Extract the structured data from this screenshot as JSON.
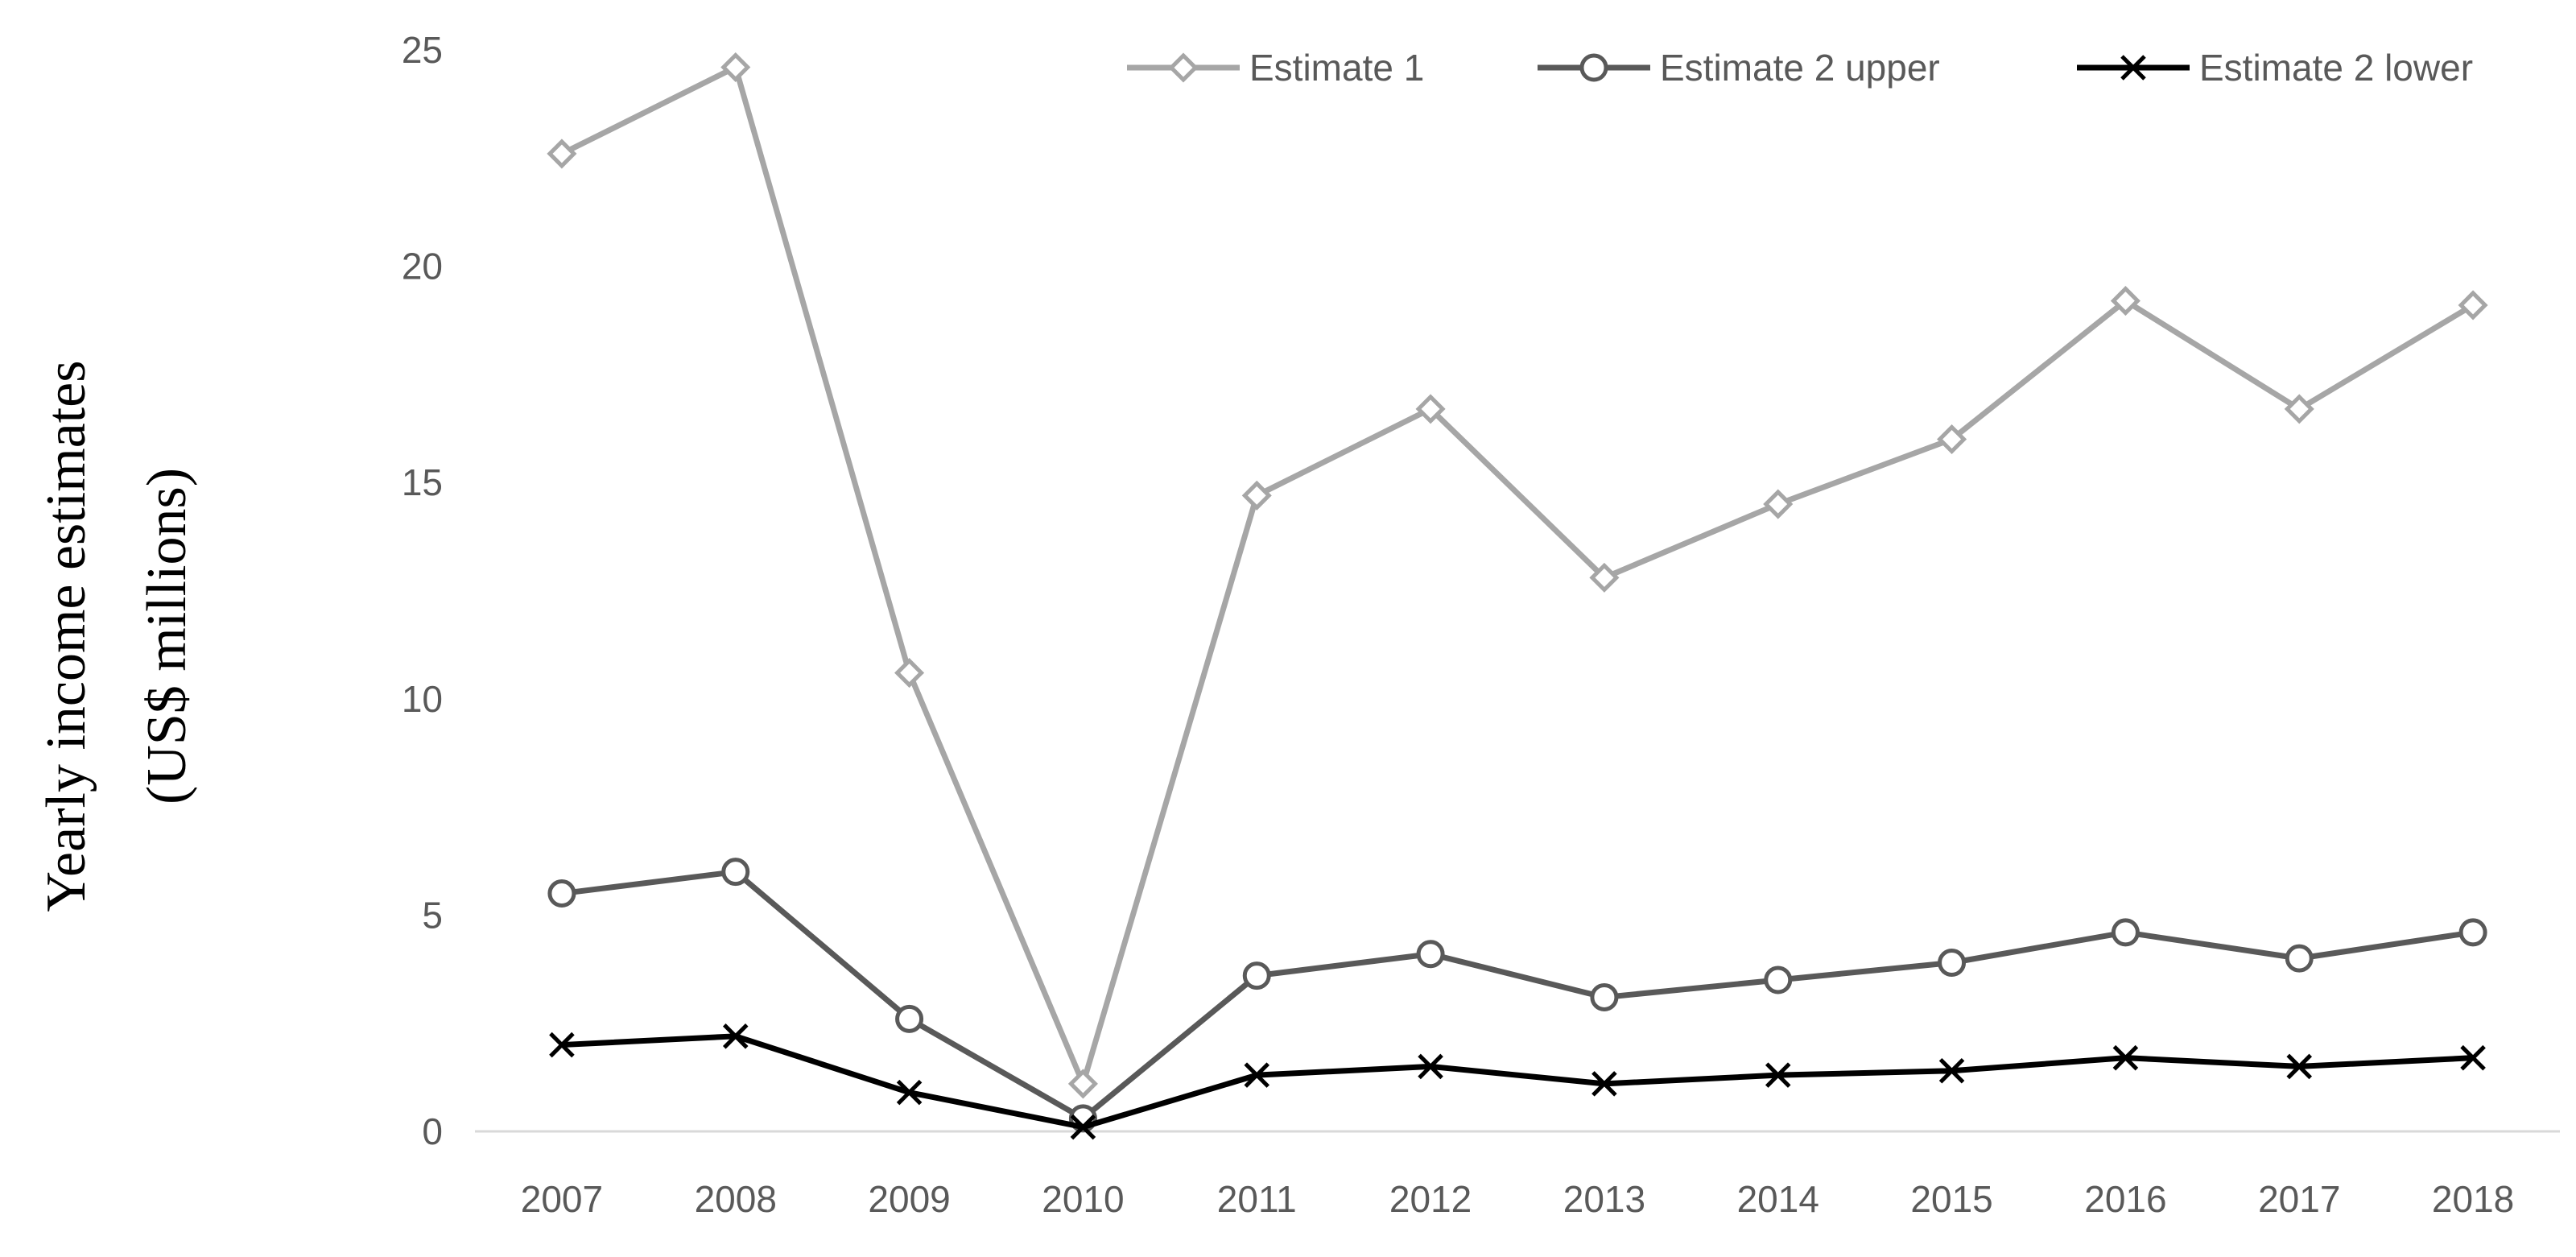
{
  "chart_data": {
    "type": "line",
    "title": "",
    "xlabel": "",
    "ylabel_line1": "Yearly income estimates",
    "ylabel_line2": "(US$ millions)",
    "categories": [
      "2007",
      "2008",
      "2009",
      "2010",
      "2011",
      "2012",
      "2013",
      "2014",
      "2015",
      "2016",
      "2017",
      "2018"
    ],
    "ylim": [
      0,
      25
    ],
    "yticks": [
      0,
      5,
      10,
      15,
      20,
      25
    ],
    "grid": false,
    "legend_position": "top-right",
    "series": [
      {
        "name": "Estimate 1",
        "marker": "diamond",
        "color": "#a6a6a6",
        "values": [
          22.6,
          24.6,
          10.6,
          1.1,
          14.7,
          16.7,
          12.8,
          14.5,
          16.0,
          19.2,
          16.7,
          19.1
        ]
      },
      {
        "name": "Estimate 2 upper",
        "marker": "circle",
        "color": "#595959",
        "values": [
          5.5,
          6.0,
          2.6,
          0.3,
          3.6,
          4.1,
          3.1,
          3.5,
          3.9,
          4.6,
          4.0,
          4.6
        ]
      },
      {
        "name": "Estimate 2 lower",
        "marker": "x",
        "color": "#000000",
        "values": [
          2.0,
          2.2,
          0.9,
          0.1,
          1.3,
          1.5,
          1.1,
          1.3,
          1.4,
          1.7,
          1.5,
          1.7
        ]
      }
    ]
  }
}
